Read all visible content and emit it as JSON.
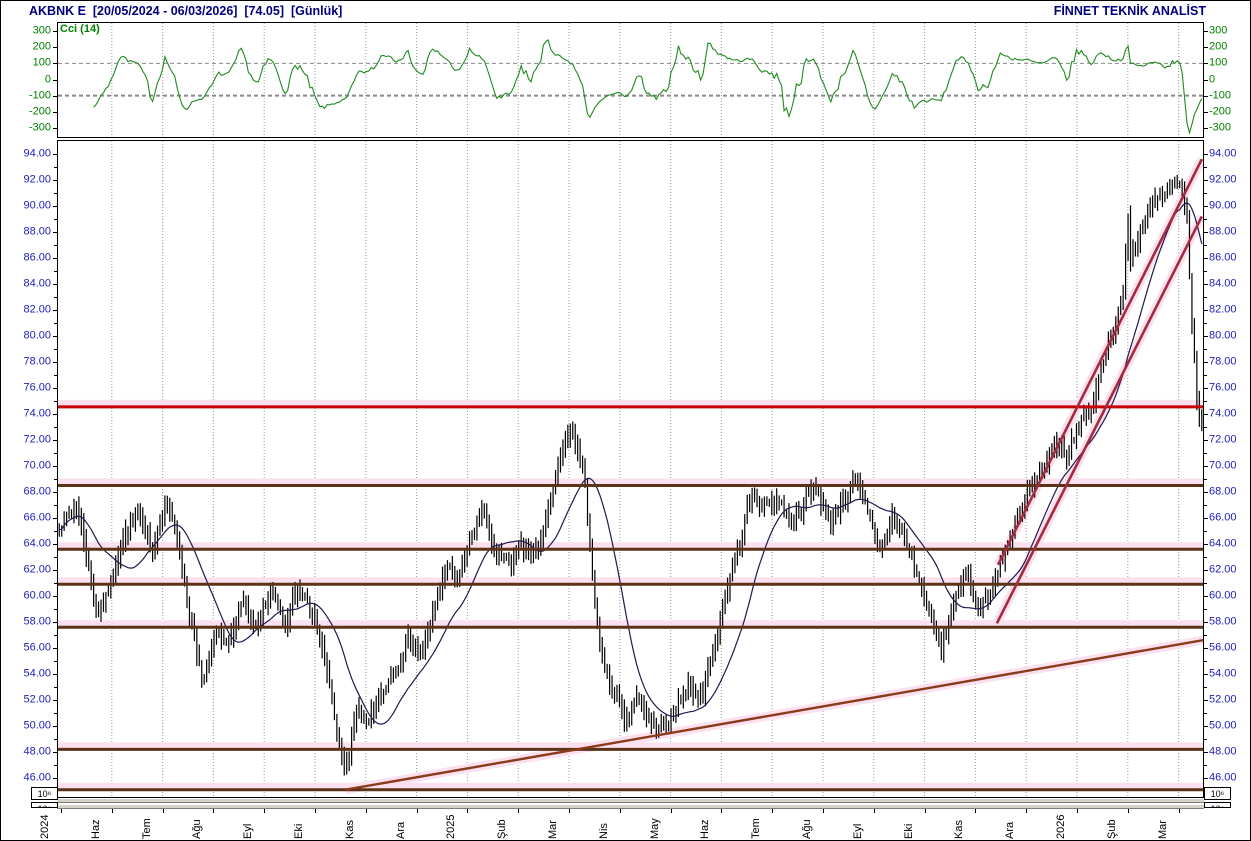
{
  "window": {
    "title": "AKBNK E  [20/05/2024 - 06/03/2026]  [74.05]  [Günlük]",
    "brand": "FİNNET TEKNİK ANALİST"
  },
  "cci_panel": {
    "label": "Cci (14)",
    "axis_labels": [
      "300",
      "200",
      "100",
      "0",
      "-100",
      "-200",
      "-300"
    ],
    "axis_values": [
      300,
      200,
      100,
      0,
      -100,
      -200,
      -300
    ],
    "dashed_levels": [
      100,
      -100
    ],
    "label_color": "#008000",
    "line_color": "#1F8A1F"
  },
  "price_axis": {
    "labels": [
      "94.00",
      "92.00",
      "90.00",
      "88.00",
      "86.00",
      "84.00",
      "82.00",
      "80.00",
      "78.00",
      "76.00",
      "74.00",
      "72.00",
      "70.00",
      "68.00",
      "66.00",
      "64.00",
      "62.00",
      "60.00",
      "58.00",
      "56.00",
      "54.00",
      "52.00",
      "50.00",
      "48.00",
      "46.00"
    ],
    "values": [
      94,
      92,
      90,
      88,
      86,
      84,
      82,
      80,
      78,
      76,
      74,
      72,
      70,
      68,
      66,
      64,
      62,
      60,
      58,
      56,
      54,
      52,
      50,
      48,
      46
    ],
    "color": "#2020C0"
  },
  "x_axis": {
    "labels": [
      "2024",
      "Haz",
      "Tem",
      "Ağu",
      "Eyl",
      "Eki",
      "Kas",
      "Ara",
      "2025",
      "Şub",
      "Mar",
      "Nis",
      "May",
      "Haz",
      "Tem",
      "Ağu",
      "Eyl",
      "Eki",
      "Kas",
      "Ara",
      "2026",
      "Şub",
      "Mar"
    ]
  },
  "volume_axis": {
    "unit": "10⁶"
  },
  "chart_data": {
    "type": "bar",
    "subtype": "ohlc-high-low-bars",
    "symbol": "AKBNK E",
    "period": "Günlük",
    "date_range": [
      "20/05/2024",
      "06/03/2026"
    ],
    "last_price": 74.05,
    "price_range_visible": [
      44.6,
      95.0
    ],
    "bars": 466,
    "ma_period": 21,
    "cci_period": 14,
    "close_waypoints": [
      [
        0,
        65.5
      ],
      [
        0.016,
        67
      ],
      [
        0.033,
        58.8
      ],
      [
        0.042,
        60
      ],
      [
        0.053,
        64
      ],
      [
        0.068,
        66.3
      ],
      [
        0.081,
        63.5
      ],
      [
        0.093,
        67.3
      ],
      [
        0.1,
        65.8
      ],
      [
        0.112,
        60
      ],
      [
        0.125,
        53.6
      ],
      [
        0.138,
        57
      ],
      [
        0.149,
        56
      ],
      [
        0.161,
        59.3
      ],
      [
        0.173,
        57.5
      ],
      [
        0.186,
        60.3
      ],
      [
        0.197,
        58.2
      ],
      [
        0.21,
        60.6
      ],
      [
        0.222,
        58.2
      ],
      [
        0.231,
        55.5
      ],
      [
        0.241,
        50.8
      ],
      [
        0.251,
        46
      ],
      [
        0.257,
        49.5
      ],
      [
        0.261,
        51
      ],
      [
        0.271,
        50.2
      ],
      [
        0.282,
        52.6
      ],
      [
        0.295,
        54.6
      ],
      [
        0.306,
        57
      ],
      [
        0.317,
        55.6
      ],
      [
        0.327,
        58.4
      ],
      [
        0.339,
        62.4
      ],
      [
        0.35,
        61.4
      ],
      [
        0.36,
        64.4
      ],
      [
        0.371,
        66.8
      ],
      [
        0.382,
        63.2
      ],
      [
        0.394,
        62.2
      ],
      [
        0.404,
        64
      ],
      [
        0.414,
        63
      ],
      [
        0.426,
        65.6
      ],
      [
        0.437,
        70.3
      ],
      [
        0.449,
        72.6
      ],
      [
        0.459,
        69.5
      ],
      [
        0.467,
        60.8
      ],
      [
        0.474,
        55.6
      ],
      [
        0.484,
        52.6
      ],
      [
        0.496,
        50.6
      ],
      [
        0.507,
        52.1
      ],
      [
        0.517,
        50
      ],
      [
        0.528,
        49.4
      ],
      [
        0.539,
        51.6
      ],
      [
        0.551,
        53.1
      ],
      [
        0.561,
        52.1
      ],
      [
        0.572,
        55.6
      ],
      [
        0.583,
        60.1
      ],
      [
        0.594,
        63.6
      ],
      [
        0.606,
        67.9
      ],
      [
        0.618,
        67
      ],
      [
        0.629,
        67.6
      ],
      [
        0.64,
        65.6
      ],
      [
        0.651,
        67.1
      ],
      [
        0.663,
        68.4
      ],
      [
        0.674,
        65.6
      ],
      [
        0.686,
        67.4
      ],
      [
        0.696,
        69
      ],
      [
        0.708,
        66.1
      ],
      [
        0.718,
        63.6
      ],
      [
        0.729,
        66.1
      ],
      [
        0.74,
        64.4
      ],
      [
        0.751,
        61.6
      ],
      [
        0.762,
        58.6
      ],
      [
        0.772,
        55.6
      ],
      [
        0.784,
        60.1
      ],
      [
        0.795,
        61.4
      ],
      [
        0.805,
        59.1
      ],
      [
        0.816,
        60.6
      ],
      [
        0.827,
        63.1
      ],
      [
        0.838,
        66.1
      ],
      [
        0.849,
        68
      ],
      [
        0.86,
        69.4
      ],
      [
        0.872,
        71.4
      ],
      [
        0.882,
        70.6
      ],
      [
        0.893,
        73.4
      ],
      [
        0.904,
        74.6
      ],
      [
        0.914,
        78.4
      ],
      [
        0.926,
        81.6
      ],
      [
        0.9328,
        83.8
      ],
      [
        0.9345,
        92.8
      ],
      [
        0.9365,
        85.2
      ],
      [
        0.943,
        87
      ],
      [
        0.952,
        89.4
      ],
      [
        0.961,
        90.6
      ],
      [
        0.971,
        91.4
      ],
      [
        0.982,
        92.2
      ],
      [
        0.987,
        88.6
      ],
      [
        0.991,
        81
      ],
      [
        0.9965,
        74.05
      ],
      [
        1,
        74.05
      ]
    ],
    "horizontal_lines": [
      {
        "price": 74.55,
        "color": "#C80000",
        "width": 3
      },
      {
        "price": 68.5,
        "color": "#5C3317",
        "width": 3
      },
      {
        "price": 63.6,
        "color": "#5C3317",
        "width": 3
      },
      {
        "price": 60.9,
        "color": "#5C3317",
        "width": 3
      },
      {
        "price": 57.6,
        "color": "#5C3317",
        "width": 3
      },
      {
        "price": 48.2,
        "color": "#5C3317",
        "width": 3
      },
      {
        "price": 45.1,
        "color": "#5C3317",
        "width": 3
      }
    ],
    "trend_lines": [
      {
        "from": [
          0.251,
          45.1
        ],
        "to": [
          1.0,
          56.6
        ],
        "color": "#8B3A1A",
        "width": 2.4
      },
      {
        "from": [
          0.82,
          57.9
        ],
        "to": [
          0.999,
          89.2
        ],
        "color": "#A22C3B",
        "width": 2.6
      },
      {
        "from": [
          0.821,
          62.4
        ],
        "to": [
          0.999,
          93.6
        ],
        "color": "#A22C3B",
        "width": 2.6
      }
    ],
    "halo_color": "#FBE0F0",
    "bar_color": "#000000",
    "ma_color": "#1B1B4F",
    "grid_color": "#9A9A9A"
  }
}
